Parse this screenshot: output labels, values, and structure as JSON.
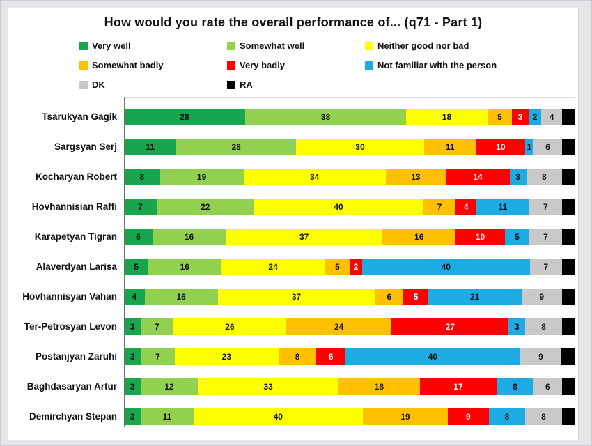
{
  "title": "How would you rate the overall performance of... (q71 - Part 1)",
  "colors": {
    "very_well": "#17a64d",
    "somewhat_well": "#92d050",
    "neither_good_nor_bad": "#ffff00",
    "somewhat_badly": "#ffc000",
    "very_badly": "#fe0000",
    "not_familiar": "#1cabe2",
    "dk": "#c9c9c9",
    "ra": "#000000"
  },
  "legend": [
    {
      "label": "Very well",
      "color": "#17a64d"
    },
    {
      "label": "Somewhat well",
      "color": "#92d050"
    },
    {
      "label": "Neither good nor bad",
      "color": "#ffff00"
    },
    {
      "label": "Somewhat badly",
      "color": "#ffc000"
    },
    {
      "label": "Very badly",
      "color": "#fe0000"
    },
    {
      "label": "Not familiar with the person",
      "color": "#1cabe2"
    },
    {
      "label": "DK",
      "color": "#c9c9c9"
    },
    {
      "label": "RA",
      "color": "#000000"
    }
  ],
  "chart_data": {
    "type": "bar",
    "orientation": "horizontal-stacked-100",
    "title": "How would you rate the overall performance of... (q71 - Part 1)",
    "xlabel": "",
    "ylabel": "",
    "xlim": [
      0,
      100
    ],
    "grid": false,
    "legend_position": "top-left",
    "value_labels": "inside-center",
    "categories": [
      "Tsarukyan Gagik",
      "Sargsyan Serj",
      "Kocharyan Robert",
      "Hovhannisian Raffi",
      "Karapetyan Tigran",
      "Alaverdyan Larisa",
      "Hovhannisyan Vahan",
      "Ter-Petrosyan Levon",
      "Postanjyan Zaruhi",
      "Baghdasaryan Artur",
      "Demirchyan Stepan"
    ],
    "series": [
      {
        "name": "Very well",
        "color": "#17a64d",
        "text_color": "#111111",
        "values": [
          28,
          11,
          8,
          7,
          6,
          5,
          4,
          3,
          3,
          3,
          3
        ]
      },
      {
        "name": "Somewhat well",
        "color": "#92d050",
        "text_color": "#111111",
        "values": [
          38,
          28,
          19,
          22,
          16,
          16,
          16,
          7,
          7,
          12,
          11
        ]
      },
      {
        "name": "Neither good nor bad",
        "color": "#ffff00",
        "text_color": "#111111",
        "values": [
          18,
          30,
          34,
          40,
          37,
          24,
          37,
          26,
          23,
          33,
          40
        ]
      },
      {
        "name": "Somewhat badly",
        "color": "#ffc000",
        "text_color": "#111111",
        "values": [
          5,
          11,
          13,
          7,
          16,
          5,
          6,
          24,
          8,
          18,
          19
        ]
      },
      {
        "name": "Very badly",
        "color": "#fe0000",
        "text_color": "#ffffff",
        "values": [
          3,
          10,
          14,
          4,
          10,
          2,
          5,
          27,
          6,
          17,
          9
        ]
      },
      {
        "name": "Not familiar with the person",
        "color": "#1cabe2",
        "text_color": "#111111",
        "values": [
          2,
          1,
          3,
          11,
          5,
          40,
          21,
          3,
          40,
          8,
          8
        ]
      },
      {
        "name": "DK",
        "color": "#c9c9c9",
        "text_color": "#111111",
        "values": [
          4,
          6,
          8,
          7,
          7,
          7,
          9,
          8,
          9,
          6,
          8
        ]
      },
      {
        "name": "RA",
        "color": "#000000",
        "text_color": "#000000",
        "values": [
          2,
          2,
          2,
          2,
          2,
          2,
          2,
          2,
          2,
          2,
          2
        ],
        "labels_visible": false
      }
    ]
  }
}
